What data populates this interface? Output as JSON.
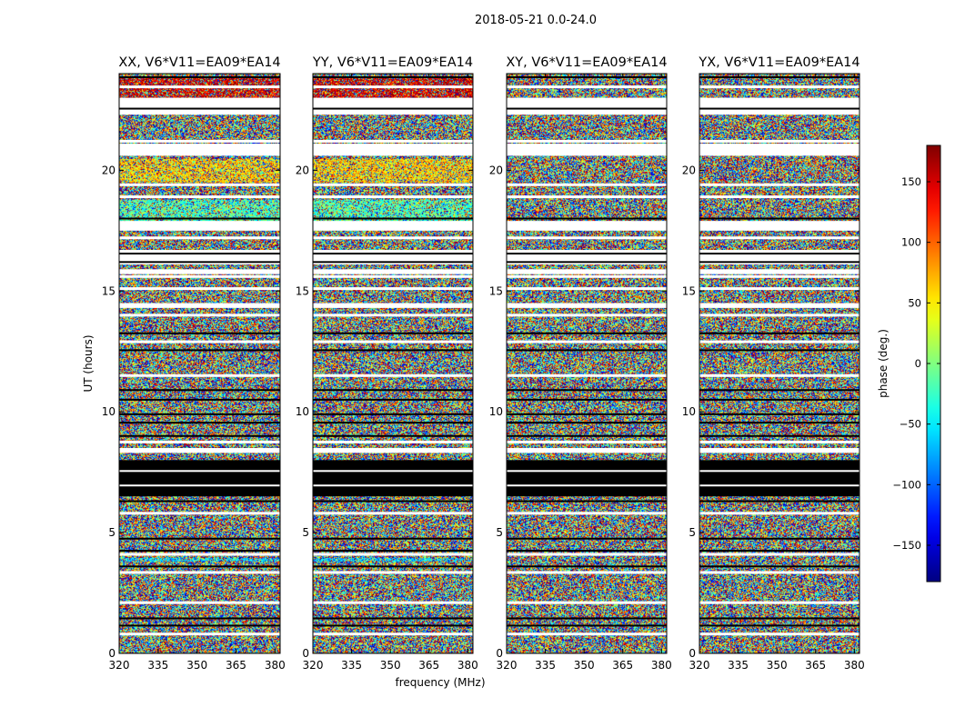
{
  "chart_data": {
    "type": "heatmap",
    "title": "2018-05-21 0.0-24.0",
    "xlabel": "frequency (MHz)",
    "ylabel": "UT (hours)",
    "xlim": [
      320,
      382
    ],
    "ylim": [
      0,
      24
    ],
    "x_ticks": [
      320,
      335,
      350,
      365,
      380
    ],
    "y_ticks": [
      0,
      5,
      10,
      15,
      20
    ],
    "panels": [
      {
        "name": "XX",
        "title": "XX, V6*V11=EA09*EA14",
        "structure": "parallel"
      },
      {
        "name": "YY",
        "title": "YY, V6*V11=EA09*EA14",
        "structure": "parallel"
      },
      {
        "name": "XY",
        "title": "XY, V6*V11=EA09*EA14",
        "structure": "cross"
      },
      {
        "name": "YX",
        "title": "YX, V6*V11=EA09*EA14",
        "structure": "cross"
      }
    ],
    "blank_ut_ranges": [
      [
        22.3,
        23.0
      ],
      [
        20.6,
        21.1
      ],
      [
        16.1,
        16.7
      ],
      [
        17.5,
        17.9
      ],
      [
        15.7,
        15.9
      ],
      [
        14.3,
        14.5
      ],
      [
        8.3,
        8.5
      ]
    ],
    "flagged_black_ut_ranges": [
      [
        6.5,
        8.0
      ]
    ],
    "parallel_hand_bands": [
      {
        "ut": [
          17.8,
          18.8
        ],
        "phase": -20
      },
      {
        "ut": [
          23.0,
          23.9
        ],
        "phase": 150
      },
      {
        "ut": [
          19.5,
          20.5
        ],
        "phase": 60
      },
      {
        "ut": [
          3.8,
          3.95
        ],
        "phase": -60
      }
    ],
    "colorbar": {
      "label": "phase (deg.)",
      "min": -180,
      "max": 180,
      "ticks": [
        -150,
        -100,
        -50,
        0,
        50,
        100,
        150
      ],
      "tick_labels": [
        "−150",
        "−100",
        "−50",
        "0",
        "50",
        "100",
        "150"
      ],
      "colormap": "jet"
    }
  }
}
